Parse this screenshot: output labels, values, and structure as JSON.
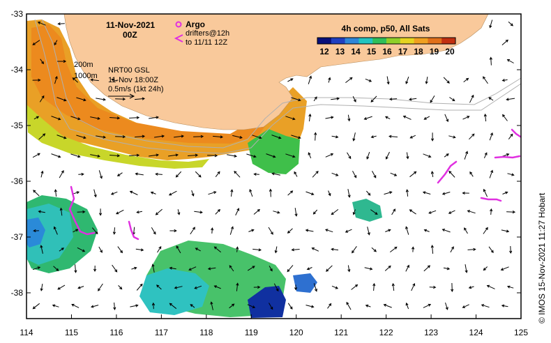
{
  "header": {
    "date": "11-Nov-2021",
    "time": "00Z"
  },
  "legend": {
    "argo_label": "Argo",
    "drifters_line1": "drifters@12h",
    "drifters_line2": "to 11/11 12Z"
  },
  "colorbar": {
    "title": "4h comp, p50, All Sats",
    "ticks": [
      "12",
      "13",
      "14",
      "15",
      "16",
      "17",
      "18",
      "19",
      "20"
    ],
    "colors": [
      "#08107a",
      "#1f3fc0",
      "#2e86d8",
      "#22c4c0",
      "#2fbf5a",
      "#8fd02a",
      "#e6d420",
      "#f0a020",
      "#e0701a",
      "#c23010"
    ]
  },
  "annotations": {
    "depth_200": "200m",
    "depth_1000": "1000m",
    "product": "NRT00 GSL",
    "product_time": "11-Nov 18:00Z",
    "velocity_scale": "0.5m/s (1kt 24h)"
  },
  "axes": {
    "x_ticks": [
      "114",
      "115",
      "116",
      "117",
      "118",
      "119",
      "120",
      "121",
      "122",
      "123",
      "124",
      "125"
    ],
    "y_ticks": [
      "-33",
      "-34",
      "-35",
      "-36",
      "-37",
      "-38"
    ]
  },
  "credit": "© IMOS 15-Nov-2021 11:27 Hobart",
  "colors": {
    "land": "#f9c99b",
    "argo": "#e030e0",
    "drifter": "#e030e0"
  }
}
